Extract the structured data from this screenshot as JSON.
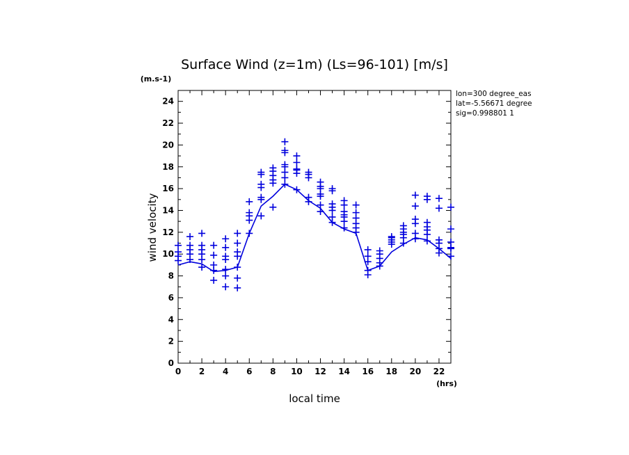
{
  "chart_data": {
    "type": "scatter",
    "title": "Surface Wind (z=1m) (Ls=96-101) [m/s]",
    "y_unit": "(m.s-1)",
    "x_unit": "(hrs)",
    "xlabel": "local time",
    "ylabel": "wind velocity",
    "xlim": [
      0,
      23
    ],
    "ylim": [
      0,
      25
    ],
    "x_ticks": [
      0,
      2,
      4,
      6,
      8,
      10,
      12,
      14,
      16,
      18,
      20,
      22
    ],
    "y_ticks": [
      0,
      2,
      4,
      6,
      8,
      10,
      12,
      14,
      16,
      18,
      20,
      22,
      24
    ],
    "grid": false,
    "color": "#0000dd",
    "info_lines": [
      "lon=300 degree_eas",
      "lat=-5.56671 degree",
      "sig=0.998801 1"
    ],
    "mean_line": {
      "x": [
        0,
        1,
        2,
        3,
        4,
        5,
        6,
        7,
        8,
        9,
        10,
        11,
        12,
        13,
        14,
        15,
        16,
        17,
        18,
        19,
        20,
        21,
        22,
        23
      ],
      "y": [
        9.0,
        9.3,
        9.1,
        8.4,
        8.5,
        8.8,
        11.9,
        14.4,
        15.3,
        16.4,
        15.9,
        14.9,
        14.2,
        12.9,
        12.3,
        11.9,
        8.5,
        8.9,
        10.2,
        10.9,
        11.5,
        11.3,
        10.5,
        9.6
      ]
    },
    "points": [
      {
        "x": 0,
        "y": [
          9.4,
          9.8,
          10.2,
          10.8
        ]
      },
      {
        "x": 1,
        "y": [
          9.5,
          10.0,
          10.4,
          10.8,
          11.6
        ]
      },
      {
        "x": 2,
        "y": [
          8.8,
          9.5,
          10.0,
          10.4,
          10.8,
          11.9
        ]
      },
      {
        "x": 3,
        "y": [
          7.6,
          8.5,
          9.0,
          9.9,
          10.8
        ]
      },
      {
        "x": 4,
        "y": [
          7.0,
          8.0,
          8.6,
          9.5,
          9.8,
          10.6,
          11.4
        ]
      },
      {
        "x": 5,
        "y": [
          6.9,
          7.8,
          8.8,
          9.8,
          10.2,
          11.0,
          11.9
        ]
      },
      {
        "x": 6,
        "y": [
          11.9,
          13.1,
          13.5,
          13.8,
          14.8
        ]
      },
      {
        "x": 7,
        "y": [
          13.5,
          15.0,
          15.2,
          16.1,
          16.4,
          17.3,
          17.5
        ]
      },
      {
        "x": 8,
        "y": [
          14.3,
          16.5,
          16.8,
          17.2,
          17.6,
          17.9
        ]
      },
      {
        "x": 9,
        "y": [
          16.4,
          17.0,
          17.5,
          18.0,
          18.2,
          19.3,
          19.5,
          20.3
        ]
      },
      {
        "x": 10,
        "y": [
          15.9,
          17.4,
          17.7,
          17.8,
          18.4,
          19.0
        ]
      },
      {
        "x": 11,
        "y": [
          14.8,
          15.2,
          17.0,
          17.3,
          17.5
        ]
      },
      {
        "x": 12,
        "y": [
          13.9,
          14.5,
          15.3,
          15.5,
          16.0,
          16.2,
          16.6
        ]
      },
      {
        "x": 13,
        "y": [
          12.9,
          13.4,
          14.0,
          14.3,
          14.6,
          15.8,
          16.0
        ]
      },
      {
        "x": 14,
        "y": [
          12.4,
          13.0,
          13.4,
          13.6,
          13.9,
          14.5,
          14.9
        ]
      },
      {
        "x": 15,
        "y": [
          12.0,
          12.4,
          12.8,
          13.3,
          13.8,
          14.5
        ]
      },
      {
        "x": 16,
        "y": [
          8.1,
          8.5,
          9.3,
          9.8,
          10.4
        ]
      },
      {
        "x": 17,
        "y": [
          8.9,
          9.2,
          9.6,
          10.0,
          10.3
        ]
      },
      {
        "x": 18,
        "y": [
          10.9,
          11.1,
          11.3,
          11.5,
          11.6
        ]
      },
      {
        "x": 19,
        "y": [
          11.0,
          11.5,
          11.8,
          12.0,
          12.3,
          12.6
        ]
      },
      {
        "x": 20,
        "y": [
          11.4,
          11.9,
          12.8,
          13.2,
          14.4,
          15.4
        ]
      },
      {
        "x": 21,
        "y": [
          11.2,
          11.8,
          12.2,
          12.5,
          12.9,
          15.0,
          15.3
        ]
      },
      {
        "x": 22,
        "y": [
          10.1,
          10.5,
          11.0,
          11.3,
          14.2,
          15.1
        ]
      },
      {
        "x": 23,
        "y": [
          9.8,
          10.5,
          10.6,
          11.1,
          12.3,
          14.3
        ]
      }
    ]
  }
}
